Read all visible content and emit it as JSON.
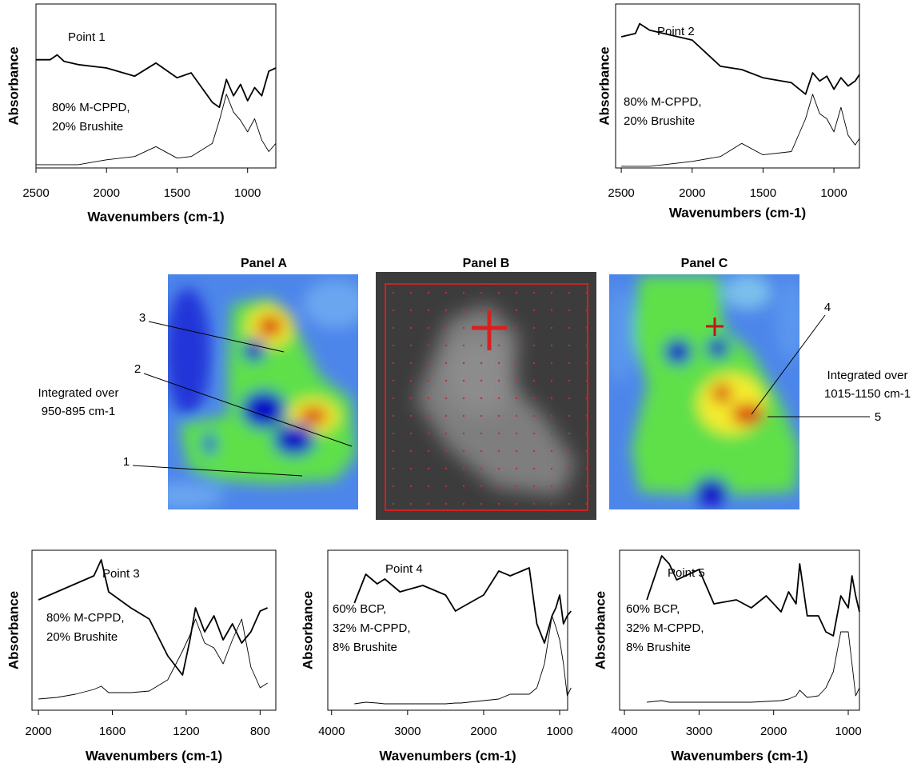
{
  "chart_data": [
    {
      "type": "line",
      "title": "Point 1",
      "annotation": [
        "80% M-CPPD,",
        "20% Brushite"
      ],
      "xlabel": "Wavenumbers (cm-1)",
      "ylabel": "Absorbance",
      "x": [
        2500,
        2400,
        2350,
        2300,
        2200,
        2000,
        1800,
        1650,
        1500,
        1400,
        1250,
        1200,
        1150,
        1100,
        1050,
        1000,
        950,
        900,
        850,
        800
      ],
      "series": [
        {
          "color": "#000000",
          "values": [
            0.66,
            0.66,
            0.69,
            0.65,
            0.63,
            0.61,
            0.56,
            0.64,
            0.55,
            0.58,
            0.4,
            0.37,
            0.54,
            0.44,
            0.51,
            0.41,
            0.49,
            0.44,
            0.59,
            0.61
          ]
        },
        {
          "color": "#000000",
          "values": [
            0.02,
            0.02,
            0.02,
            0.02,
            0.02,
            0.05,
            0.07,
            0.13,
            0.06,
            0.07,
            0.15,
            0.29,
            0.45,
            0.34,
            0.29,
            0.22,
            0.3,
            0.17,
            0.1,
            0.15
          ]
        }
      ],
      "xlim": [
        2500,
        800
      ],
      "xticks": [
        2500,
        2000,
        1500,
        1000
      ],
      "ylim": [
        0,
        1
      ]
    },
    {
      "type": "line",
      "title": "Point 2",
      "annotation": [
        "80% M-CPPD,",
        "20% Brushite"
      ],
      "xlabel": "Wavenumbers (cm-1)",
      "ylabel": "Absorbance",
      "x": [
        2500,
        2400,
        2370,
        2300,
        2200,
        2000,
        1800,
        1650,
        1500,
        1300,
        1200,
        1150,
        1100,
        1050,
        1000,
        950,
        900,
        850,
        820
      ],
      "series": [
        {
          "color": "#000000",
          "values": [
            0.8,
            0.82,
            0.88,
            0.84,
            0.82,
            0.78,
            0.62,
            0.6,
            0.55,
            0.52,
            0.45,
            0.58,
            0.53,
            0.56,
            0.48,
            0.55,
            0.5,
            0.53,
            0.57
          ]
        },
        {
          "color": "#000000",
          "values": [
            0.01,
            0.01,
            0.01,
            0.01,
            0.02,
            0.04,
            0.07,
            0.15,
            0.08,
            0.1,
            0.3,
            0.45,
            0.33,
            0.3,
            0.22,
            0.37,
            0.2,
            0.14,
            0.18
          ]
        }
      ],
      "xlim": [
        2540,
        820
      ],
      "xticks": [
        2500,
        2000,
        1500,
        1000
      ],
      "ylim": [
        0,
        1
      ]
    },
    {
      "type": "line",
      "title": "Point 3",
      "annotation": [
        "80% M-CPPD,",
        "20% Brushite"
      ],
      "xlabel": "Wavenumbers (cm-1)",
      "ylabel": "Absorbance",
      "x": [
        2000,
        1900,
        1800,
        1700,
        1660,
        1620,
        1500,
        1400,
        1300,
        1220,
        1180,
        1150,
        1100,
        1050,
        1000,
        950,
        900,
        850,
        800,
        760
      ],
      "series": [
        {
          "color": "#000000",
          "values": [
            0.69,
            0.74,
            0.79,
            0.84,
            0.94,
            0.74,
            0.64,
            0.57,
            0.34,
            0.22,
            0.44,
            0.64,
            0.49,
            0.59,
            0.44,
            0.54,
            0.42,
            0.49,
            0.62,
            0.64
          ]
        },
        {
          "color": "#000000",
          "values": [
            0.07,
            0.08,
            0.1,
            0.13,
            0.15,
            0.11,
            0.11,
            0.12,
            0.19,
            0.37,
            0.47,
            0.57,
            0.42,
            0.39,
            0.29,
            0.44,
            0.57,
            0.27,
            0.14,
            0.17
          ]
        }
      ],
      "xlim": [
        2035,
        715
      ],
      "xticks": [
        2000,
        1600,
        1200,
        800
      ],
      "ylim": [
        0,
        1
      ]
    },
    {
      "type": "line",
      "title": "Point 4",
      "annotation": [
        "60% BCP,",
        "32% M-CPPD,",
        "8% Brushite"
      ],
      "xlabel": "Wavenumbers (cm-1)",
      "ylabel": "Absorbance",
      "x": [
        3700,
        3550,
        3400,
        3300,
        3100,
        2800,
        2500,
        2370,
        2300,
        2000,
        1800,
        1650,
        1400,
        1300,
        1200,
        1100,
        1050,
        1000,
        950,
        900,
        850
      ],
      "series": [
        {
          "color": "#000000",
          "values": [
            0.67,
            0.85,
            0.79,
            0.82,
            0.74,
            0.78,
            0.72,
            0.62,
            0.64,
            0.72,
            0.87,
            0.84,
            0.89,
            0.54,
            0.42,
            0.59,
            0.64,
            0.72,
            0.54,
            0.59,
            0.62
          ]
        },
        {
          "color": "#000000",
          "values": [
            0.04,
            0.05,
            0.045,
            0.04,
            0.04,
            0.04,
            0.04,
            0.045,
            0.045,
            0.06,
            0.07,
            0.1,
            0.1,
            0.14,
            0.29,
            0.59,
            0.52,
            0.44,
            0.29,
            0.09,
            0.14
          ]
        }
      ],
      "xlim": [
        4050,
        895
      ],
      "xticks": [
        4000,
        3000,
        2000,
        1000
      ],
      "ylim": [
        0,
        1
      ]
    },
    {
      "type": "line",
      "title": "Point 5",
      "annotation": [
        "60% BCP,",
        "32% M-CPPD,",
        "8% Brushite"
      ],
      "xlabel": "Wavenumbers (cm-1)",
      "ylabel": "Absorbance",
      "x": [
        3700,
        3500,
        3400,
        3300,
        3000,
        2800,
        2500,
        2300,
        2100,
        1900,
        1800,
        1700,
        1650,
        1550,
        1400,
        1300,
        1200,
        1100,
        1000,
        950,
        900,
        850
      ],
      "series": [
        {
          "color": "#000000",
          "values": [
            0.69,
            0.965,
            0.915,
            0.815,
            0.88,
            0.665,
            0.69,
            0.64,
            0.715,
            0.615,
            0.74,
            0.665,
            0.915,
            0.59,
            0.59,
            0.49,
            0.465,
            0.715,
            0.64,
            0.84,
            0.715,
            0.615
          ]
        },
        {
          "color": "#000000",
          "values": [
            0.05,
            0.06,
            0.05,
            0.05,
            0.05,
            0.05,
            0.05,
            0.05,
            0.055,
            0.06,
            0.07,
            0.09,
            0.125,
            0.08,
            0.09,
            0.14,
            0.24,
            0.49,
            0.49,
            0.29,
            0.09,
            0.14
          ]
        }
      ],
      "xlim": [
        4065,
        850
      ],
      "xticks": [
        4000,
        3000,
        2000,
        1000
      ],
      "ylim": [
        0,
        1
      ]
    }
  ],
  "panels": [
    {
      "title": "Panel A",
      "note": [
        "Integrated over",
        "950-895 cm-1"
      ],
      "points": [
        "3",
        "2",
        "1"
      ]
    },
    {
      "title": "Panel B"
    },
    {
      "title": "Panel C",
      "note": [
        "Integrated over",
        "1015-1150 cm-1"
      ],
      "points": [
        "4",
        "5"
      ]
    }
  ]
}
